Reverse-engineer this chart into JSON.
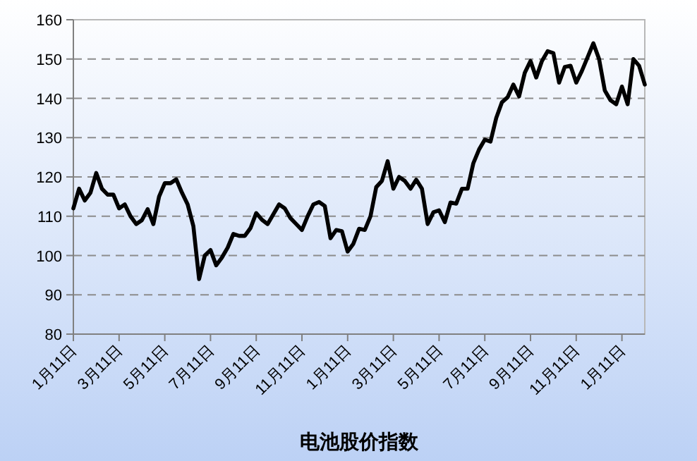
{
  "chart_data": {
    "type": "line",
    "xlabel": "电池股价指数",
    "categories": [
      "1月11日",
      null,
      null,
      null,
      null,
      null,
      null,
      null,
      "3月11日",
      null,
      null,
      null,
      null,
      null,
      null,
      null,
      "5月11日",
      null,
      null,
      null,
      null,
      null,
      null,
      null,
      "7月11日",
      null,
      null,
      null,
      null,
      null,
      null,
      null,
      "9月11日",
      null,
      null,
      null,
      null,
      null,
      null,
      null,
      "11月11日",
      null,
      null,
      null,
      null,
      null,
      null,
      null,
      "1月11日",
      null,
      null,
      null,
      null,
      null,
      null,
      null,
      "3月11日",
      null,
      null,
      null,
      null,
      null,
      null,
      null,
      "5月11日",
      null,
      null,
      null,
      null,
      null,
      null,
      null,
      "7月11日",
      null,
      null,
      null,
      null,
      null,
      null,
      null,
      "9月11日",
      null,
      null,
      null,
      null,
      null,
      null,
      null,
      "11月11日",
      null,
      null,
      null,
      null,
      null,
      null,
      null,
      "1月11日",
      null,
      null,
      null,
      null
    ],
    "values": [
      112,
      117,
      114,
      116,
      121,
      117,
      115.5,
      115.5,
      112,
      113,
      110,
      108,
      109,
      111.8,
      108,
      115,
      118.4,
      118.4,
      119.4,
      116,
      113,
      107.5,
      94,
      100,
      101.4,
      97.5,
      99.5,
      102,
      105.5,
      105,
      105,
      107,
      110.8,
      109.1,
      108,
      110.5,
      113,
      112,
      109.5,
      108,
      106.5,
      110,
      113,
      113.6,
      112.6,
      104.4,
      106.5,
      106.2,
      101,
      103,
      106.8,
      106.5,
      110,
      117.4,
      119,
      124,
      117,
      120,
      119,
      117,
      119.3,
      117,
      108,
      111,
      111.5,
      108.5,
      113.5,
      113.2,
      117,
      117,
      123.5,
      127,
      129.5,
      129,
      135,
      139,
      140.3,
      143.5,
      140.5,
      146.5,
      149.5,
      145.3,
      149.5,
      152,
      151.5,
      144,
      148,
      148.3,
      144,
      147,
      150.5,
      154,
      150,
      142,
      139.5,
      138.5,
      143,
      138.5,
      150,
      148.3,
      143.5
    ],
    "color": "#000000",
    "ylim": [
      80,
      160
    ],
    "yticks": [
      80,
      90,
      100,
      110,
      120,
      130,
      140,
      150,
      160
    ],
    "grid": "y"
  }
}
